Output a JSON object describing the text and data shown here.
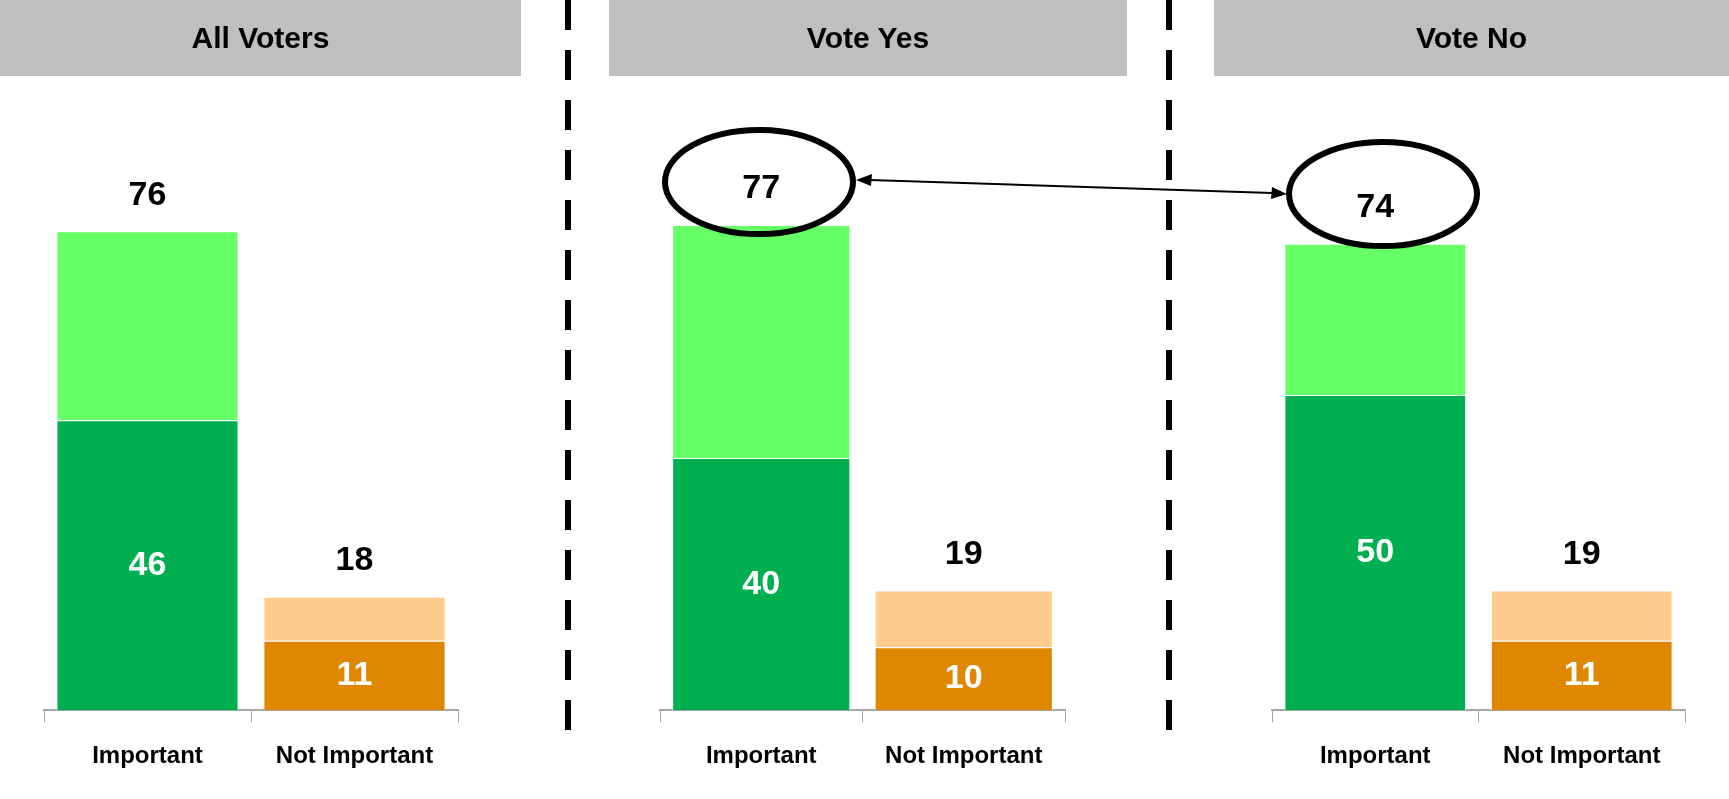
{
  "chart_data": [
    {
      "type": "bar",
      "title": "All Voters",
      "categories": [
        "Important",
        "Not Important"
      ],
      "stacked": true,
      "totals": [
        "76",
        "18"
      ],
      "series": [
        {
          "colors": [
            "#00b050",
            "#e08700"
          ],
          "values": [
            46,
            11
          ],
          "value_labels": [
            "46",
            "11"
          ]
        },
        {
          "colors": [
            "#66ff66",
            "#fecc8a"
          ],
          "values": [
            30,
            7
          ]
        }
      ]
    },
    {
      "type": "bar",
      "title": "Vote Yes",
      "categories": [
        "Important",
        "Not Important"
      ],
      "stacked": true,
      "totals": [
        "77",
        "19"
      ],
      "series": [
        {
          "colors": [
            "#00b050",
            "#e08700"
          ],
          "values": [
            40,
            10
          ],
          "value_labels": [
            "40",
            "10"
          ]
        },
        {
          "colors": [
            "#66ff66",
            "#fecc8a"
          ],
          "values": [
            37,
            9
          ]
        }
      ]
    },
    {
      "type": "bar",
      "title": "Vote No",
      "categories": [
        "Important",
        "Not Important"
      ],
      "stacked": true,
      "totals": [
        "74",
        "19"
      ],
      "series": [
        {
          "colors": [
            "#00b050",
            "#e08700"
          ],
          "values": [
            50,
            11
          ],
          "value_labels": [
            "50",
            "11"
          ]
        },
        {
          "colors": [
            "#66ff66",
            "#fecc8a"
          ],
          "values": [
            24,
            8
          ]
        }
      ]
    }
  ]
}
